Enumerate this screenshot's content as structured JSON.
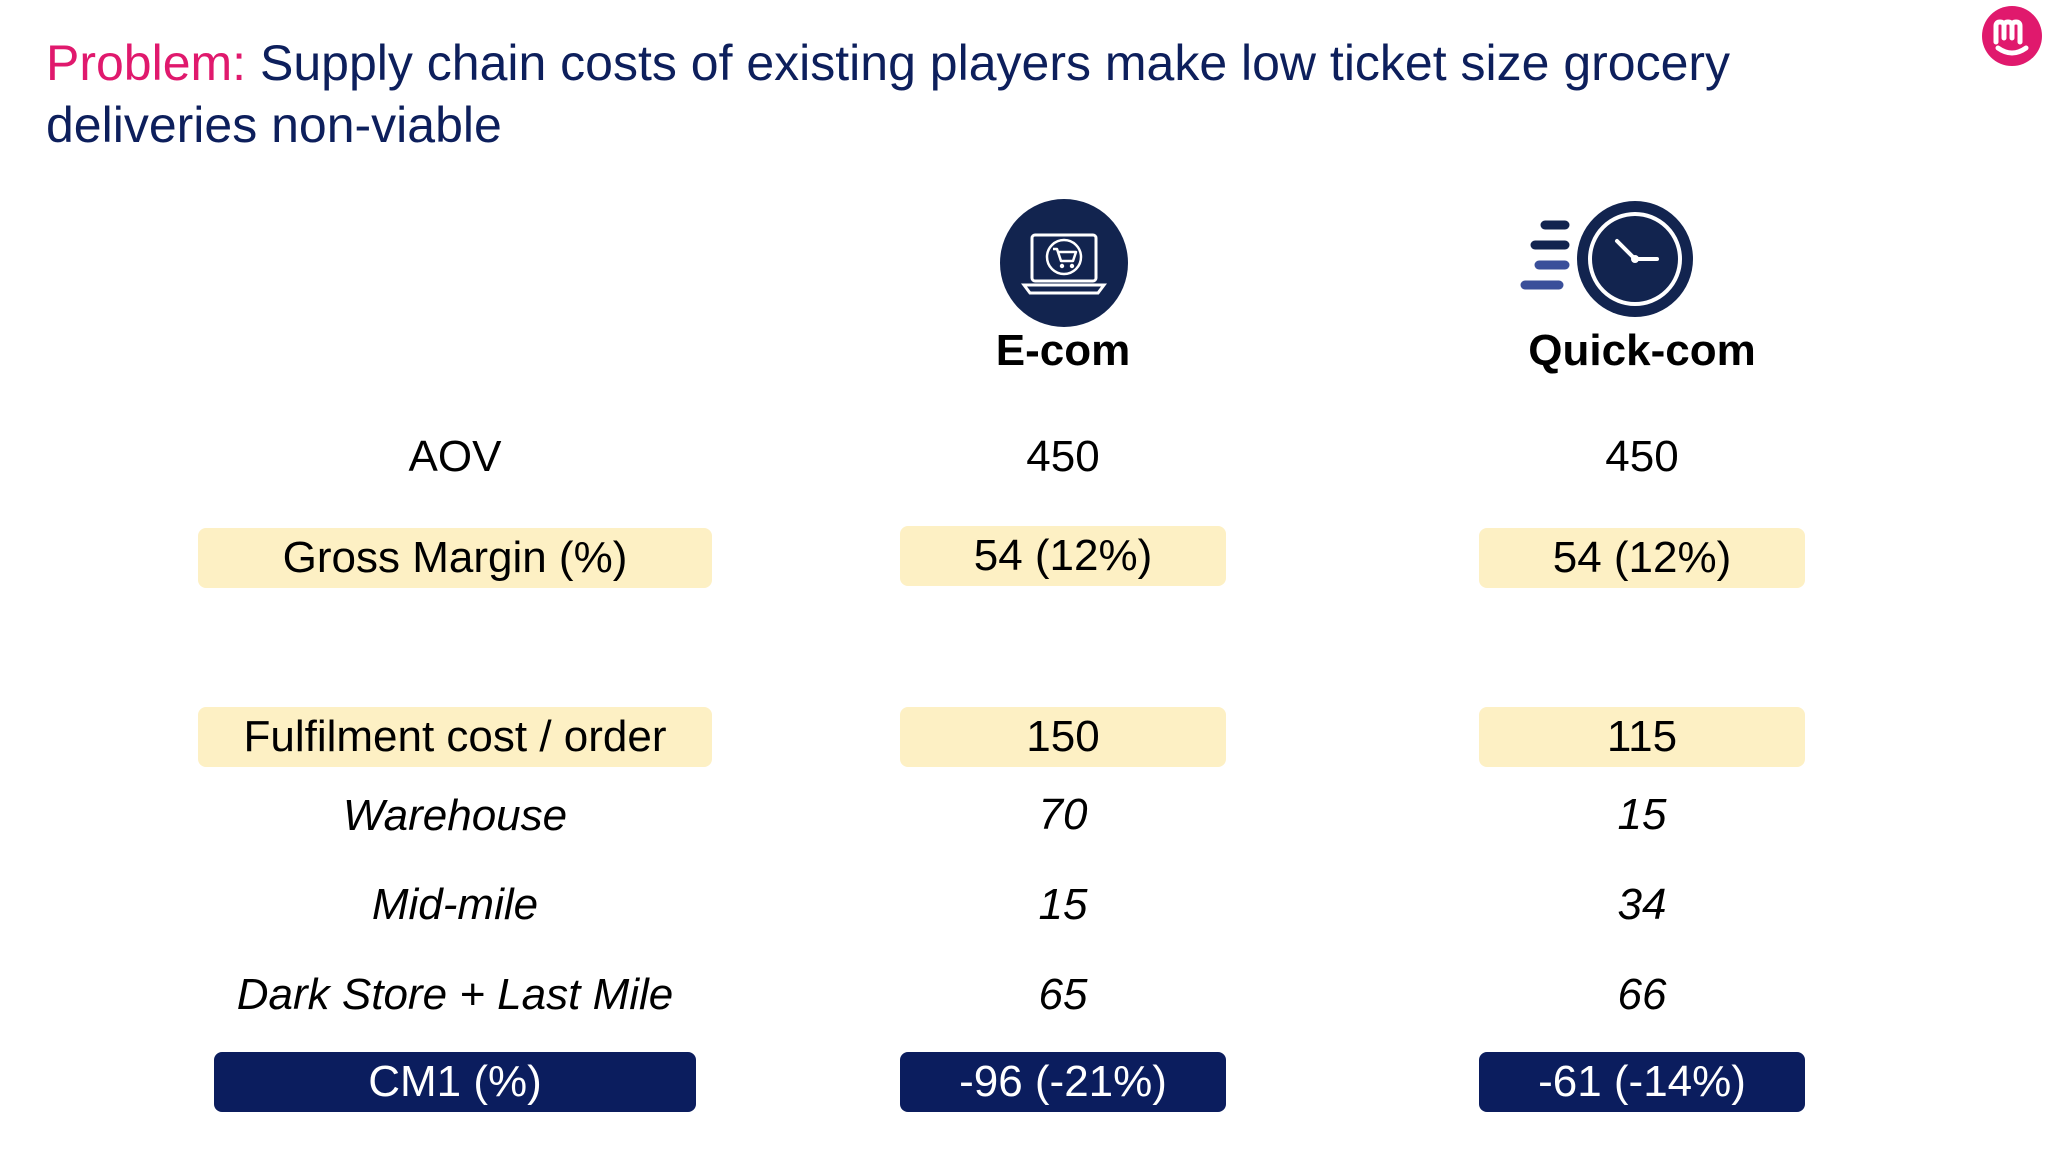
{
  "title": {
    "prefix": "Problem:",
    "text": "Supply chain costs of existing players make low ticket size grocery deliveries non-viable"
  },
  "logo": {
    "icon": "brand-logo-icon",
    "color": "#e0196d"
  },
  "columns": {
    "ecom": {
      "header": "E-com",
      "icon": "laptop-cart-icon"
    },
    "quickcom": {
      "header": "Quick-com",
      "icon": "fast-clock-icon"
    }
  },
  "rows": {
    "aov": {
      "label": "AOV",
      "ecom": "450",
      "quickcom": "450"
    },
    "gross_margin": {
      "label": "Gross Margin (%)",
      "ecom": "54 (12%)",
      "quickcom": "54 (12%)"
    },
    "fulfilment": {
      "label": "Fulfilment cost / order",
      "ecom": "150",
      "quickcom": "115"
    },
    "warehouse": {
      "label": "Warehouse",
      "ecom": "70",
      "quickcom": "15"
    },
    "mid_mile": {
      "label": "Mid-mile",
      "ecom": "15",
      "quickcom": "34"
    },
    "last_mile": {
      "label": "Dark Store + Last Mile",
      "ecom": "65",
      "quickcom": "66"
    },
    "cm1": {
      "label": "CM1 (%)",
      "ecom": "-96 (-21%)",
      "quickcom": "-61 (-14%)"
    }
  },
  "colors": {
    "accent": "#e0196d",
    "navy": "#0b1d5e",
    "highlight": "#fdf0c4"
  }
}
